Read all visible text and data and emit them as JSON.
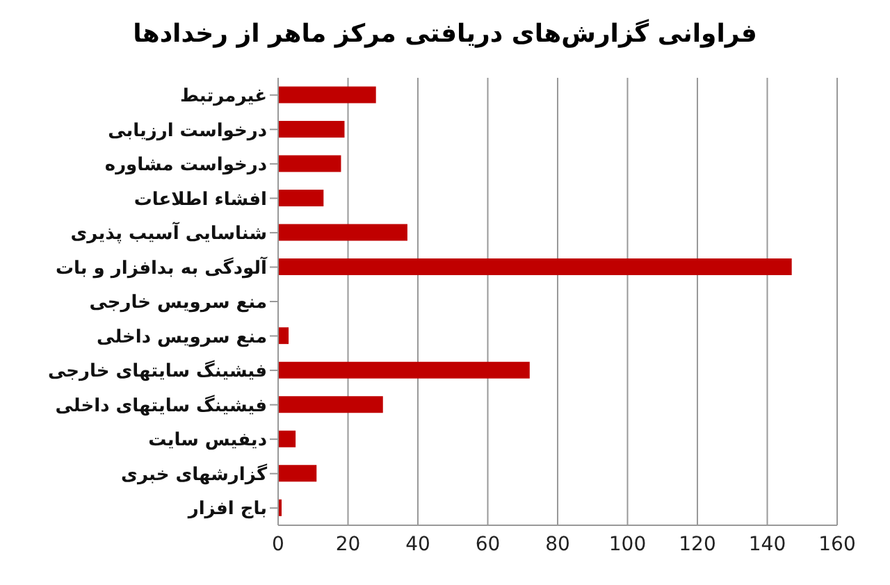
{
  "chart_data": {
    "type": "bar",
    "orientation": "horizontal",
    "title": "فراوانی گزارش‌های دریافتی مرکز ماهر از رخدادها",
    "categories": [
      "غیرمرتبط",
      "درخواست ارزیابی",
      "درخواست مشاوره",
      "افشاء اطلاعات",
      "شناسایی آسیب پذیری",
      "آلودگی به بدافزار و بات",
      "منع سرویس خارجی",
      "منع سرویس داخلی",
      "فیشینگ سایتهای خارجی",
      "فیشینگ سایتهای داخلی",
      "دیفیس سایت",
      "گزارشهای خبری",
      "باج افزار"
    ],
    "values": [
      28,
      19,
      18,
      13,
      37,
      147,
      0,
      3,
      72,
      30,
      5,
      11,
      1
    ],
    "color": "#c00000",
    "xlim": [
      0,
      160
    ],
    "xticks": [
      0,
      20,
      40,
      60,
      80,
      100,
      120,
      140,
      160
    ],
    "grid": "x"
  }
}
